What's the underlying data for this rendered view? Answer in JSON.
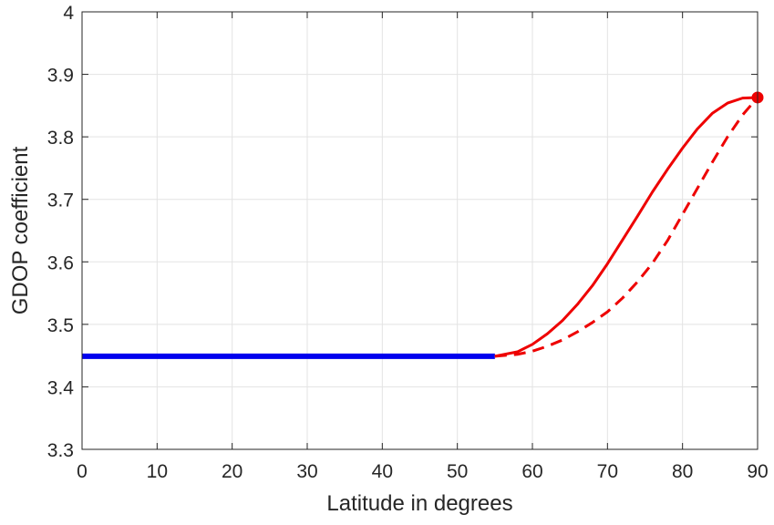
{
  "chart_data": {
    "type": "line",
    "title": "",
    "xlabel": "Latitude in degrees",
    "ylabel": "GDOP coefficient",
    "xlim": [
      0,
      90
    ],
    "ylim": [
      3.3,
      4.0
    ],
    "x_ticks": [
      0,
      10,
      20,
      30,
      40,
      50,
      60,
      70,
      80,
      90
    ],
    "y_ticks": [
      3.3,
      3.4,
      3.5,
      3.6,
      3.7,
      3.8,
      3.9,
      4.0
    ],
    "x_tick_labels": [
      "0",
      "10",
      "20",
      "30",
      "40",
      "50",
      "60",
      "70",
      "80",
      "90"
    ],
    "y_tick_labels": [
      "3.3",
      "3.4",
      "3.5",
      "3.6",
      "3.7",
      "3.8",
      "3.9",
      "4"
    ],
    "grid": true,
    "legend": "none",
    "series": [
      {
        "style": "solid-thick",
        "color": "#0000ee",
        "x": [
          0,
          55
        ],
        "y": [
          3.449,
          3.449
        ]
      },
      {
        "style": "solid",
        "color": "#ee0000",
        "x": [
          55,
          58,
          60,
          62,
          64,
          66,
          68,
          70,
          72,
          74,
          76,
          78,
          80,
          82,
          84,
          86,
          88,
          90
        ],
        "y": [
          3.449,
          3.456,
          3.468,
          3.485,
          3.506,
          3.532,
          3.562,
          3.597,
          3.635,
          3.673,
          3.712,
          3.748,
          3.782,
          3.813,
          3.838,
          3.854,
          3.862,
          3.863
        ]
      },
      {
        "style": "dashed",
        "color": "#ee0000",
        "x": [
          55,
          58,
          60,
          62,
          64,
          66,
          68,
          70,
          72,
          74,
          76,
          78,
          80,
          82,
          84,
          86,
          88,
          90
        ],
        "y": [
          3.449,
          3.452,
          3.457,
          3.465,
          3.475,
          3.488,
          3.503,
          3.52,
          3.542,
          3.568,
          3.598,
          3.634,
          3.676,
          3.718,
          3.76,
          3.8,
          3.835,
          3.863
        ]
      }
    ],
    "marker": {
      "x": 90,
      "y": 3.863,
      "color": "#ee0000"
    }
  }
}
